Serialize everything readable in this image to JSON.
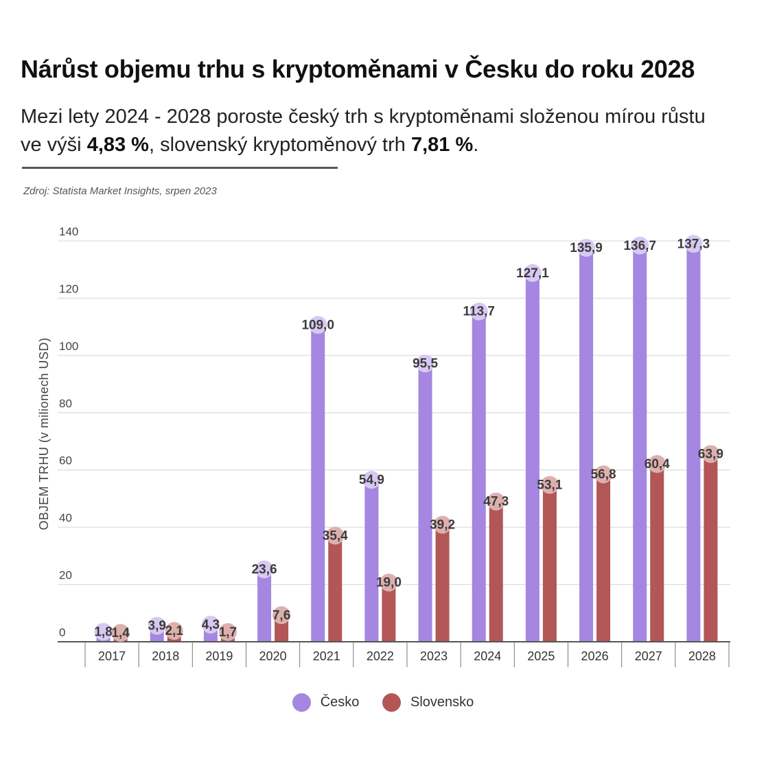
{
  "header": {
    "title": "Nárůst objemu trhu s kryptoměnami v Česku do roku 2028",
    "subtitle_part1": "Mezi lety 2024 - 2028 poroste český trh s kryptoměnami složenou mírou růstu ve výši ",
    "subtitle_bold1": "4,83 %",
    "subtitle_part2": ", slovenský kryptoměnový trh ",
    "subtitle_bold2": "7,81 %",
    "subtitle_part3": ".",
    "source": "Zdroj: Statista Market Insights, srpen 2023"
  },
  "chart_data": {
    "type": "bar",
    "ylabel": "OBJEM TRHU (v milionech USD)",
    "ylim": [
      0,
      140
    ],
    "yticks": [
      "0",
      "20",
      "40",
      "60",
      "80",
      "100",
      "120",
      "140"
    ],
    "categories": [
      "2017",
      "2018",
      "2019",
      "2020",
      "2021",
      "2022",
      "2023",
      "2024",
      "2025",
      "2026",
      "2027",
      "2028"
    ],
    "series": [
      {
        "name": "Česko",
        "color": "#a586e0",
        "label_color": "#d7c9f2",
        "values": [
          1.8,
          3.9,
          4.3,
          23.6,
          109.0,
          54.9,
          95.5,
          113.7,
          127.1,
          135.9,
          136.7,
          137.3
        ],
        "labels": [
          "1,8",
          "3,9",
          "4,3",
          "23,6",
          "109,0",
          "54,9",
          "95,5",
          "113,7",
          "127,1",
          "135,9",
          "136,7",
          "137,3"
        ]
      },
      {
        "name": "Slovensko",
        "color": "#b25656",
        "label_color": "#ddb0ae",
        "values": [
          1.4,
          2.1,
          1.7,
          7.6,
          35.4,
          19.0,
          39.2,
          47.3,
          53.1,
          56.8,
          60.4,
          63.9
        ],
        "labels": [
          "1,4",
          "2,1",
          "1,7",
          "7,6",
          "35,4",
          "19,0",
          "39,2",
          "47,3",
          "53,1",
          "56,8",
          "60,4",
          "63,9"
        ]
      }
    ],
    "grid": true,
    "legend_position": "bottom"
  }
}
